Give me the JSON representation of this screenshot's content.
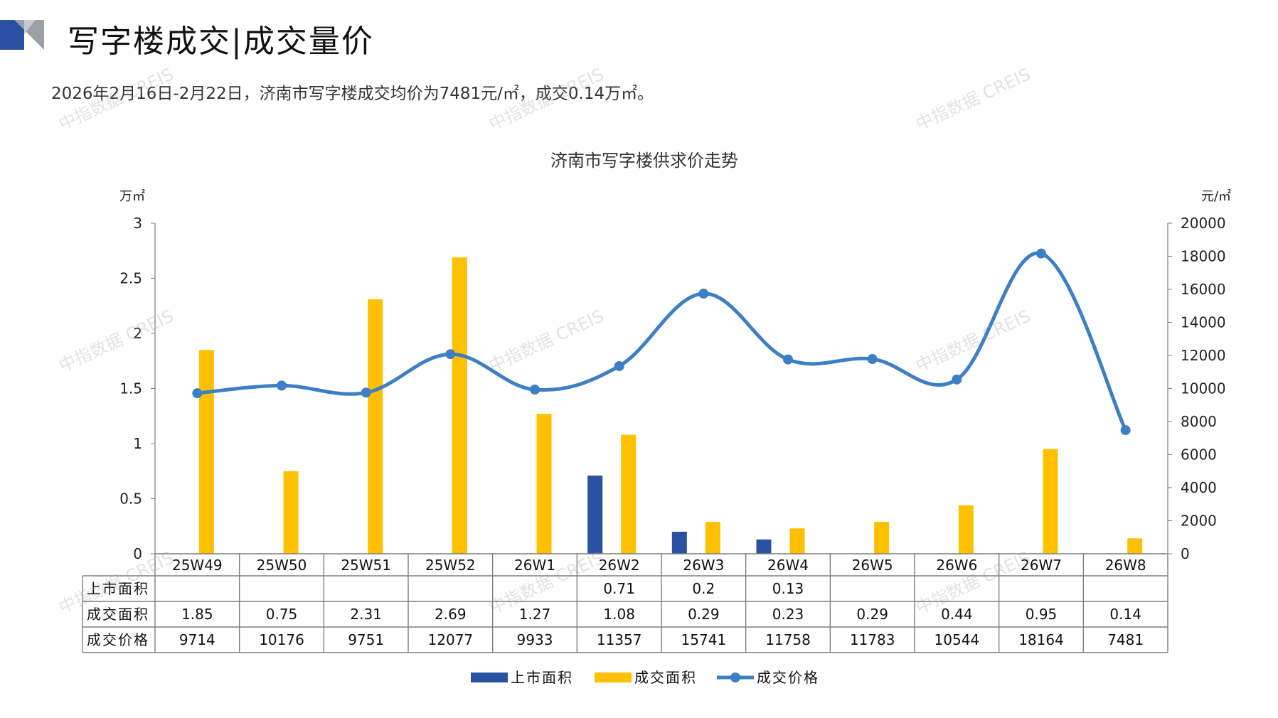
{
  "header": {
    "title": "写字楼成交|成交量价",
    "subtitle": "2026年2月16日-2月22日，济南市写字楼成交均价为7481元/㎡，成交0.14万㎡。",
    "logo_colors": [
      "#2b4fa2",
      "#9aa0a8"
    ]
  },
  "watermark": "中指数据 CREIS",
  "chart_data": {
    "type": "bar",
    "title": "济南市写字楼供求价走势",
    "y_left_unit": "万㎡",
    "y_right_unit": "元/㎡",
    "y_left_range": [
      0,
      3
    ],
    "y_left_ticks": [
      "3",
      "2.5",
      "2",
      "1.5",
      "1",
      "0.5",
      "0"
    ],
    "y_right_range": [
      0,
      20000
    ],
    "y_right_ticks": [
      "20000",
      "18000",
      "16000",
      "14000",
      "12000",
      "10000",
      "8000",
      "6000",
      "4000",
      "2000",
      "0"
    ],
    "categories": [
      "25W49",
      "25W50",
      "25W51",
      "25W52",
      "26W1",
      "26W2",
      "26W3",
      "26W4",
      "26W5",
      "26W6",
      "26W7",
      "26W8"
    ],
    "series": [
      {
        "name": "上市面积",
        "type": "bar",
        "axis": "left",
        "color": "#2a52a3",
        "values": [
          null,
          null,
          null,
          null,
          null,
          0.71,
          0.2,
          0.13,
          null,
          null,
          null,
          null
        ],
        "labels": [
          "",
          "",
          "",
          "",
          "",
          "0.71",
          "0.2",
          "0.13",
          "",
          "",
          "",
          ""
        ]
      },
      {
        "name": "成交面积",
        "type": "bar",
        "axis": "left",
        "color": "#ffc000",
        "values": [
          1.85,
          0.75,
          2.31,
          2.69,
          1.27,
          1.08,
          0.29,
          0.23,
          0.29,
          0.44,
          0.95,
          0.14
        ],
        "labels": [
          "1.85",
          "0.75",
          "2.31",
          "2.69",
          "1.27",
          "1.08",
          "0.29",
          "0.23",
          "0.29",
          "0.44",
          "0.95",
          "0.14"
        ]
      },
      {
        "name": "成交价格",
        "type": "line",
        "axis": "right",
        "color": "#3d7fc4",
        "values": [
          9714,
          10176,
          9751,
          12077,
          9933,
          11357,
          15741,
          11758,
          11783,
          10544,
          18164,
          7481
        ],
        "labels": [
          "9714",
          "10176",
          "9751",
          "12077",
          "9933",
          "11357",
          "15741",
          "11758",
          "11783",
          "10544",
          "18164",
          "7481"
        ]
      }
    ],
    "legend_position": "bottom",
    "grid": false
  }
}
